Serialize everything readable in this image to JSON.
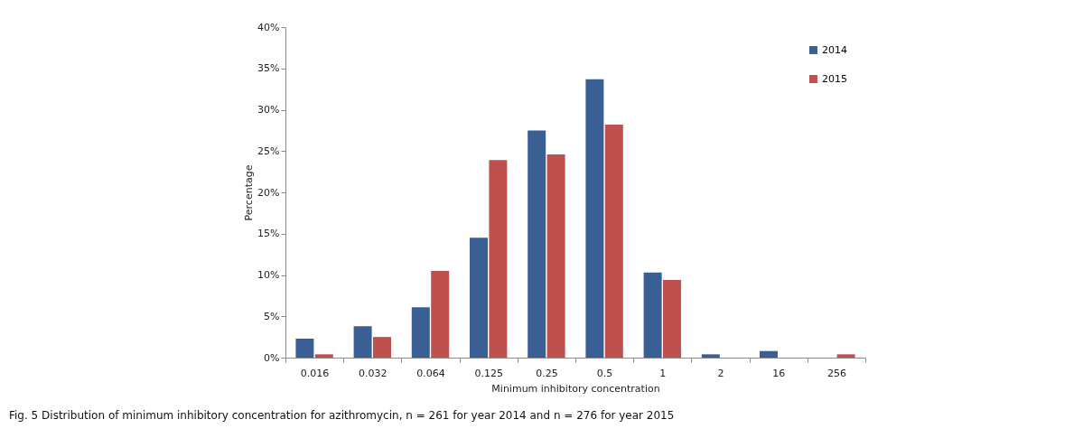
{
  "chart_data": {
    "type": "bar",
    "xlabel": "Minimum inhibitory concentration",
    "ylabel": "Percentage",
    "categories": [
      "0.016",
      "0.032",
      "0.064",
      "0.125",
      "0.25",
      "0.5",
      "1",
      "2",
      "16",
      "256"
    ],
    "series": [
      {
        "name": "2014",
        "color": "#3a5f94",
        "values": [
          2.3,
          3.8,
          6.1,
          14.5,
          27.5,
          33.7,
          10.3,
          0.4,
          0.8,
          0
        ]
      },
      {
        "name": "2015",
        "color": "#c0504d",
        "values": [
          0.4,
          2.5,
          10.5,
          23.9,
          24.6,
          28.2,
          9.4,
          0,
          0,
          0.4
        ]
      }
    ],
    "ylim": [
      0,
      40
    ],
    "yticks": [
      {
        "value": 0,
        "label": "0%"
      },
      {
        "value": 5,
        "label": "5%"
      },
      {
        "value": 10,
        "label": "10%"
      },
      {
        "value": 15,
        "label": "15%"
      },
      {
        "value": 20,
        "label": "20%"
      },
      {
        "value": 25,
        "label": "25%"
      },
      {
        "value": 30,
        "label": "30%"
      },
      {
        "value": 35,
        "label": "35%"
      },
      {
        "value": 40,
        "label": "40%"
      }
    ],
    "grid": false,
    "legend": "top right",
    "annotations": [
      "Fig. 5 Distribution of minimum inhibitory concentration for azithromycin, n = 261 for year 2014 and n = 276 for year 2015"
    ]
  }
}
